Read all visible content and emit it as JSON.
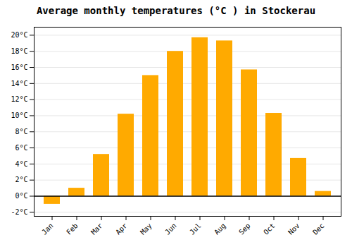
{
  "chart_data": {
    "type": "bar",
    "title": "Average monthly temperatures (°C ) in Stockerau",
    "categories": [
      "Jan",
      "Feb",
      "Mar",
      "Apr",
      "May",
      "Jun",
      "Jul",
      "Aug",
      "Sep",
      "Oct",
      "Nov",
      "Dec"
    ],
    "values": [
      -1.0,
      1.0,
      5.2,
      10.2,
      15.0,
      18.0,
      19.7,
      19.3,
      15.7,
      10.3,
      4.7,
      0.6
    ],
    "color": "#FFAA00",
    "ylim": [
      -2.5,
      21.0
    ],
    "yticks": [
      {
        "value": -2,
        "label": "-2°C"
      },
      {
        "value": 0,
        "label": "0°C"
      },
      {
        "value": 2,
        "label": "2°C"
      },
      {
        "value": 4,
        "label": "4°C"
      },
      {
        "value": 6,
        "label": "6°C"
      },
      {
        "value": 8,
        "label": "8°C"
      },
      {
        "value": 10,
        "label": "10°C"
      },
      {
        "value": 12,
        "label": "12°C"
      },
      {
        "value": 14,
        "label": "14°C"
      },
      {
        "value": 16,
        "label": "16°C"
      },
      {
        "value": 18,
        "label": "18°C"
      },
      {
        "value": 20,
        "label": "20°C"
      }
    ],
    "grid": true
  }
}
